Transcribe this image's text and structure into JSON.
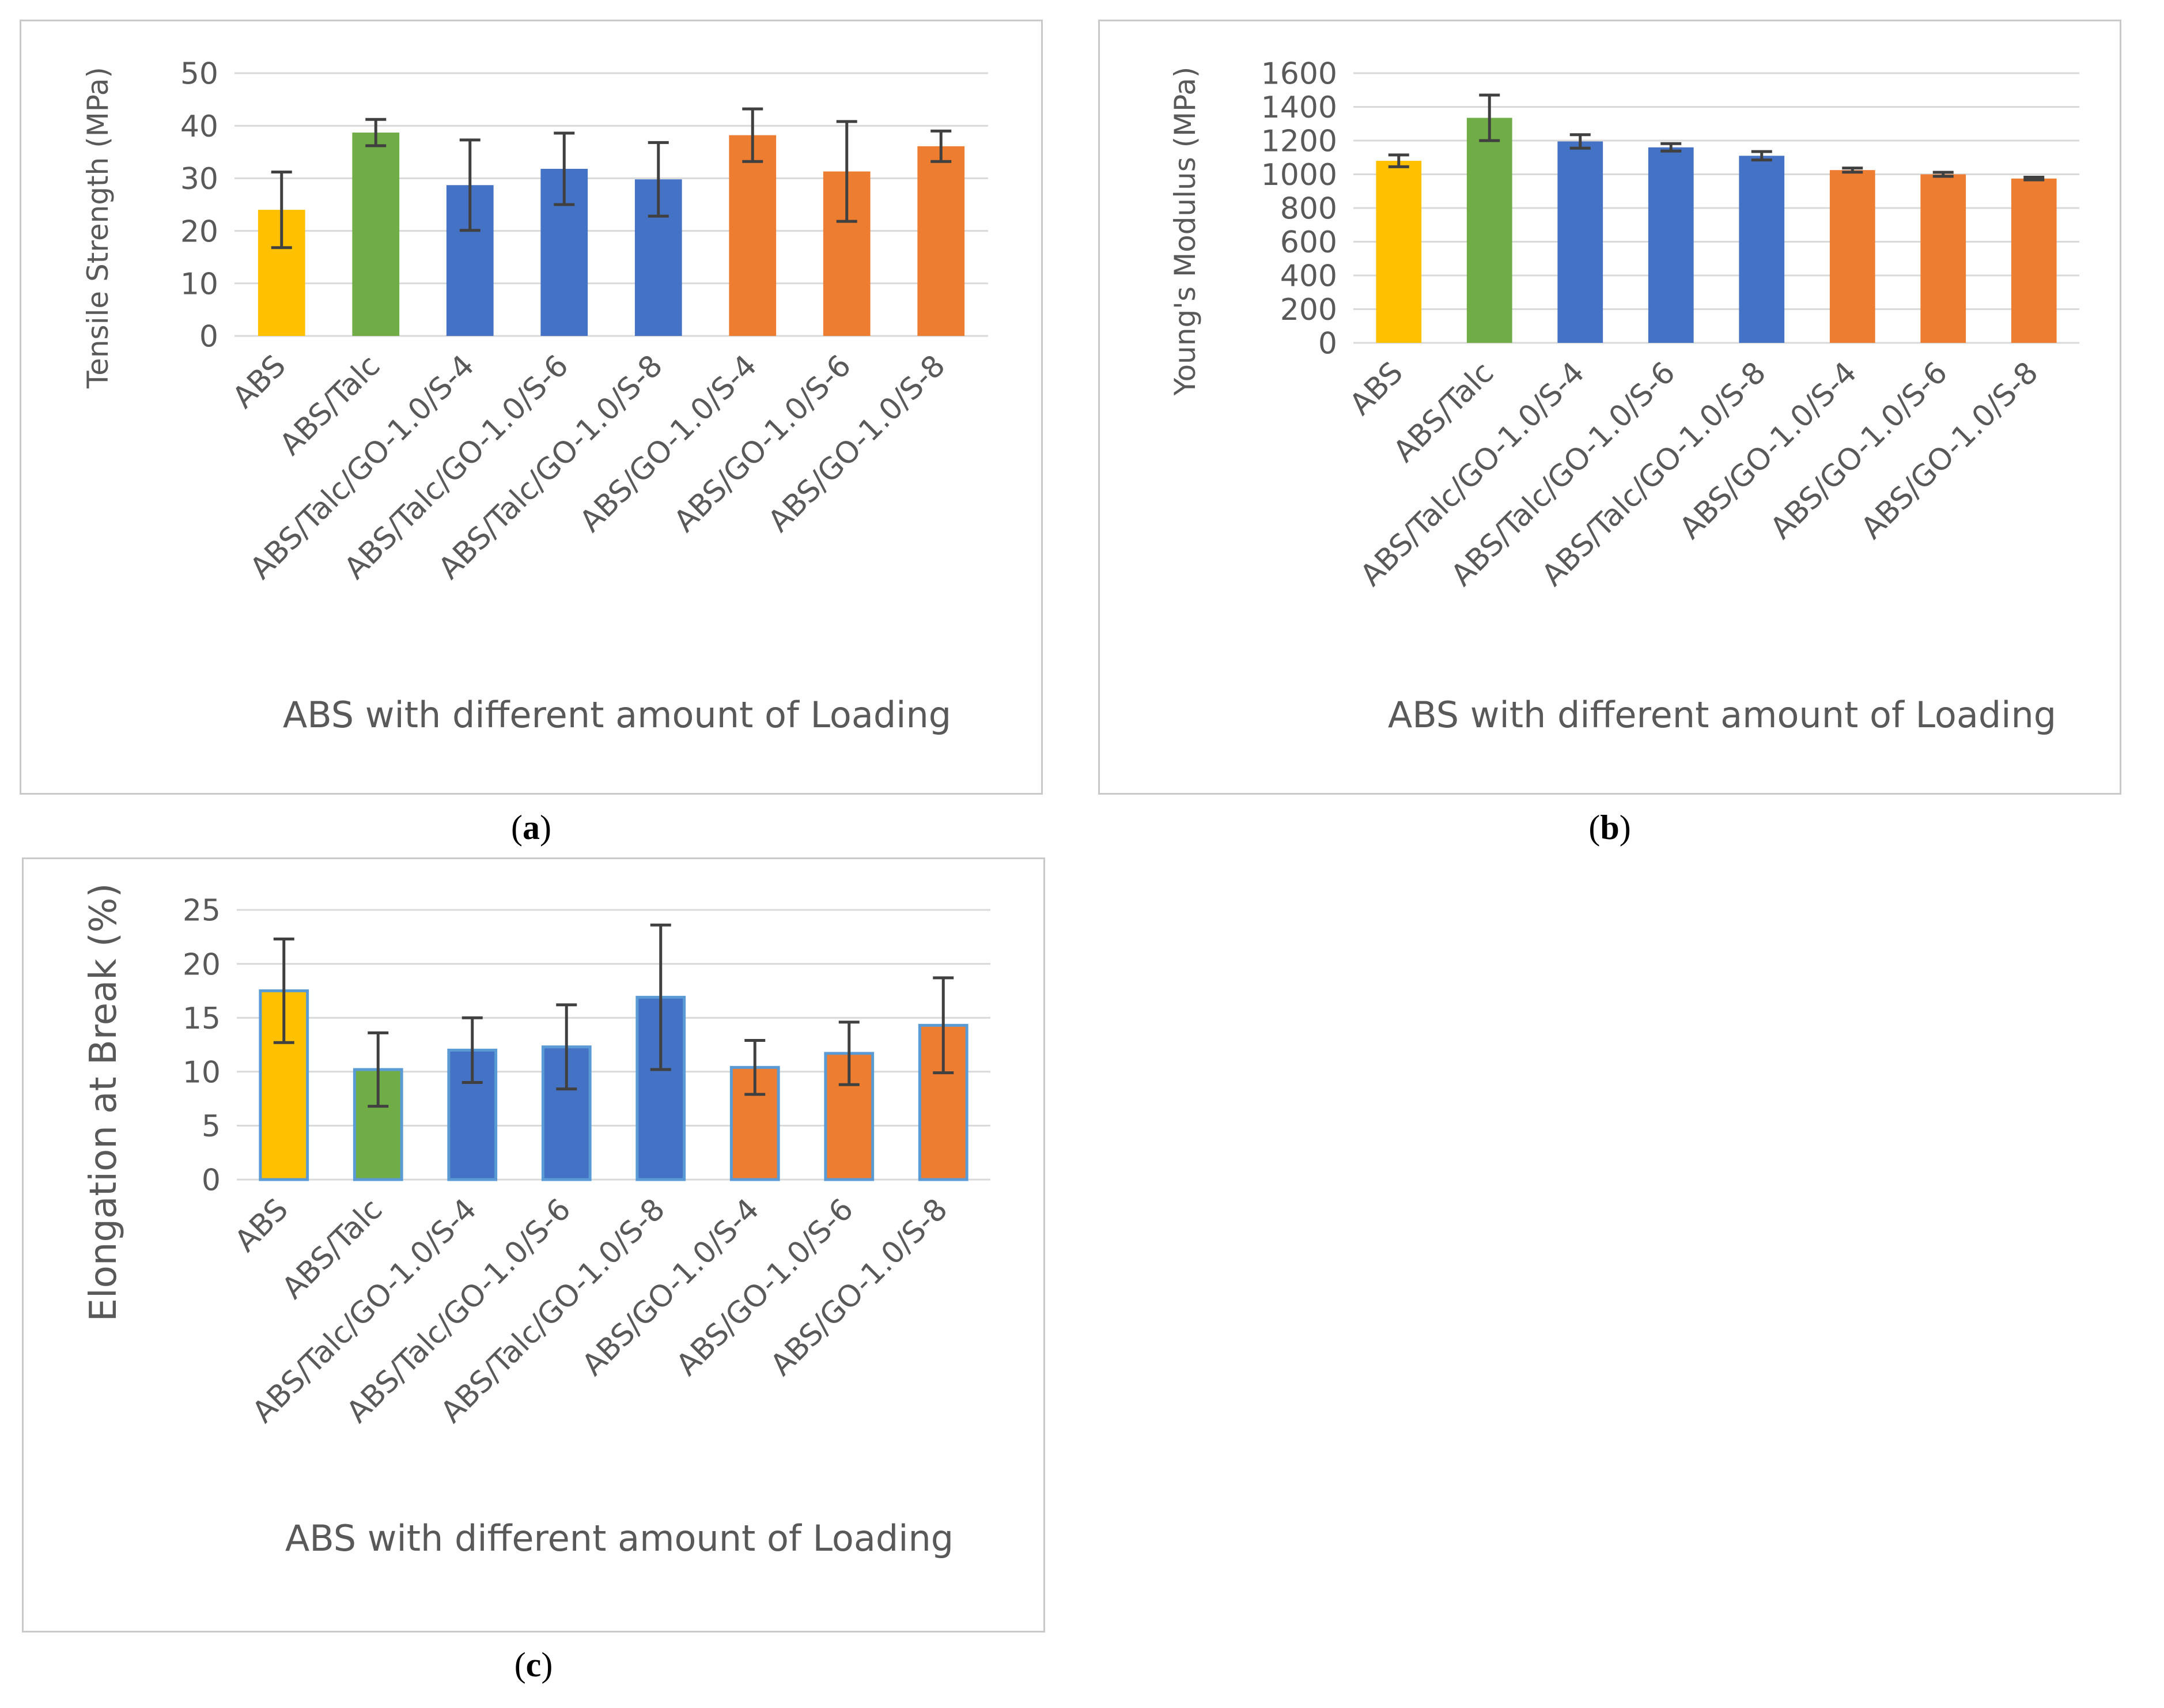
{
  "captions": {
    "a": {
      "letter": "a"
    },
    "b": {
      "letter": "b"
    },
    "c": {
      "letter": "c"
    }
  },
  "colors": {
    "abs": "#FFC000",
    "talc": "#70AD47",
    "talc_go": "#4472C4",
    "go": "#ED7D31",
    "grid": "#d9d9d9",
    "text": "#595959",
    "error_bar": "#404040"
  },
  "chart_data": [
    {
      "id": "a",
      "type": "bar",
      "title": "",
      "xlabel": "ABS with different amount of Loading",
      "ylabel": "Tensile Strength (MPa)",
      "ylim": [
        0,
        50
      ],
      "yticks": [
        0,
        10,
        20,
        30,
        40,
        50
      ],
      "grid": true,
      "categories": [
        "ABS",
        "ABS/Talc",
        "ABS/Talc/GO-1.0/S-4",
        "ABS/Talc/GO-1.0/S-6",
        "ABS/Talc/GO-1.0/S-8",
        "ABS/GO-1.0/S-4",
        "ABS/GO-1.0/S-6",
        "ABS/GO-1.0/S-8"
      ],
      "values": [
        24,
        38.7,
        28.7,
        31.8,
        29.8,
        38.2,
        31.3,
        36.1
      ],
      "errors": [
        7.2,
        2.5,
        8.6,
        6.8,
        7.0,
        5.0,
        9.5,
        2.9
      ],
      "bar_colors": [
        "#FFC000",
        "#70AD47",
        "#4472C4",
        "#4472C4",
        "#4472C4",
        "#ED7D31",
        "#ED7D31",
        "#ED7D31"
      ]
    },
    {
      "id": "b",
      "type": "bar",
      "title": "",
      "xlabel": "ABS with different amount of Loading",
      "ylabel": "Young's Modulus (MPa)",
      "ylim": [
        0,
        1600
      ],
      "yticks": [
        0,
        200,
        400,
        600,
        800,
        1000,
        1200,
        1400,
        1600
      ],
      "grid": true,
      "categories": [
        "ABS",
        "ABS/Talc",
        "ABS/Talc/GO-1.0/S-4",
        "ABS/Talc/GO-1.0/S-6",
        "ABS/Talc/GO-1.0/S-8",
        "ABS/GO-1.0/S-4",
        "ABS/GO-1.0/S-6",
        "ABS/GO-1.0/S-8"
      ],
      "values": [
        1080,
        1335,
        1195,
        1160,
        1110,
        1025,
        1000,
        975
      ],
      "errors": [
        35,
        135,
        40,
        22,
        25,
        12,
        12,
        8
      ],
      "bar_colors": [
        "#FFC000",
        "#70AD47",
        "#4472C4",
        "#4472C4",
        "#4472C4",
        "#ED7D31",
        "#ED7D31",
        "#ED7D31"
      ]
    },
    {
      "id": "c",
      "type": "bar",
      "title": "",
      "xlabel": "ABS with different amount of Loading",
      "ylabel": "Elongation at Break (%)",
      "ylim": [
        0,
        25
      ],
      "yticks": [
        0,
        5,
        10,
        15,
        20,
        25
      ],
      "grid": true,
      "categories": [
        "ABS",
        "ABS/Talc",
        "ABS/Talc/GO-1.0/S-4",
        "ABS/Talc/GO-1.0/S-6",
        "ABS/Talc/GO-1.0/S-8",
        "ABS/GO-1.0/S-4",
        "ABS/GO-1.0/S-6",
        "ABS/GO-1.0/S-8"
      ],
      "values": [
        17.5,
        10.2,
        12.0,
        12.3,
        16.9,
        10.4,
        11.7,
        14.3
      ],
      "errors": [
        4.8,
        3.4,
        3.0,
        3.9,
        6.7,
        2.5,
        2.9,
        4.4
      ],
      "bar_colors": [
        "#FFC000",
        "#70AD47",
        "#4472C4",
        "#4472C4",
        "#4472C4",
        "#ED7D31",
        "#ED7D31",
        "#ED7D31"
      ],
      "bar_outline": "#5B9BD5"
    }
  ]
}
